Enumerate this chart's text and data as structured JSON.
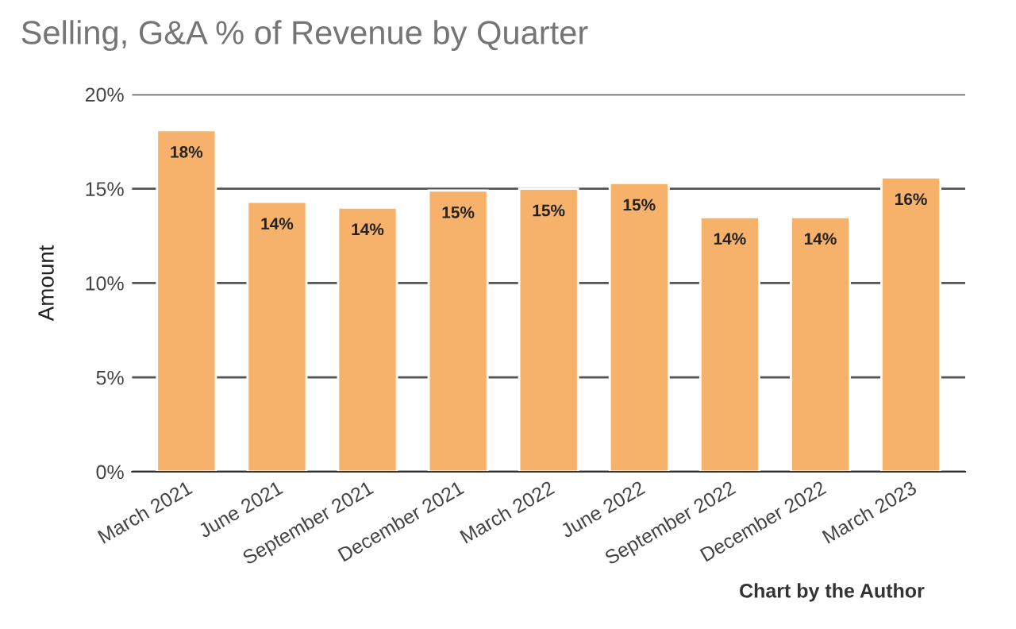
{
  "chart_data": {
    "type": "bar",
    "title": "Selling, G&A % of Revenue by Quarter",
    "ylabel": "Amount",
    "categories": [
      "March 2021",
      "June 2021",
      "September 2021",
      "December 2021",
      "March 2022",
      "June 2022",
      "September 2022",
      "December 2022",
      "March 2023"
    ],
    "values": [
      18.1,
      14.3,
      14.0,
      14.9,
      15.0,
      15.3,
      13.5,
      13.5,
      15.6
    ],
    "value_labels": [
      "18%",
      "14%",
      "14%",
      "15%",
      "15%",
      "15%",
      "14%",
      "14%",
      "16%"
    ],
    "color": "#f6b26b",
    "ylim": [
      0,
      20
    ],
    "yticks": [
      {
        "value": 0,
        "label": "0%"
      },
      {
        "value": 5,
        "label": "5%"
      },
      {
        "value": 10,
        "label": "10%"
      },
      {
        "value": 15,
        "label": "15%"
      },
      {
        "value": 20,
        "label": "20%"
      }
    ],
    "grid": "y",
    "annotations": [
      "Chart by the Author"
    ]
  }
}
